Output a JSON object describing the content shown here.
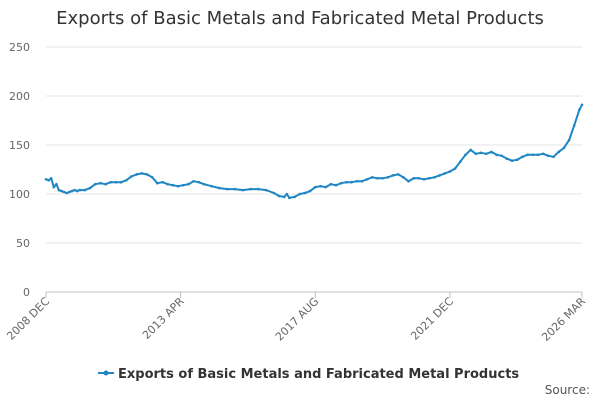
{
  "chart_data": {
    "type": "line",
    "title": "Exports of Basic Metals and Fabricated Metal Products",
    "xlabel": "",
    "ylabel": "",
    "ylim": [
      0,
      250
    ],
    "yticks": [
      "0",
      "50",
      "100",
      "150",
      "200",
      "250"
    ],
    "xticks": [
      "2008 DEC",
      "2013 APR",
      "2017 AUG",
      "2021 DEC",
      "2026 MAR"
    ],
    "grid": true,
    "legend_position": "bottom",
    "series": [
      {
        "name": "Exports of Basic Metals and Fabricated Metal Products",
        "color": "#1f86c4",
        "points": [
          [
            "2008-12",
            115
          ],
          [
            "2009-01",
            114
          ],
          [
            "2009-02",
            116
          ],
          [
            "2009-03",
            107
          ],
          [
            "2009-04",
            110
          ],
          [
            "2009-05",
            104
          ],
          [
            "2009-06",
            103
          ],
          [
            "2009-07",
            102
          ],
          [
            "2009-08",
            101
          ],
          [
            "2009-09",
            102
          ],
          [
            "2009-10",
            103
          ],
          [
            "2009-11",
            104
          ],
          [
            "2009-12",
            103
          ],
          [
            "2010-01",
            104
          ],
          [
            "2010-03",
            104
          ],
          [
            "2010-05",
            106
          ],
          [
            "2010-07",
            110
          ],
          [
            "2010-09",
            111
          ],
          [
            "2010-11",
            110
          ],
          [
            "2011-01",
            112
          ],
          [
            "2011-03",
            112
          ],
          [
            "2011-05",
            112
          ],
          [
            "2011-07",
            114
          ],
          [
            "2011-09",
            118
          ],
          [
            "2011-11",
            120
          ],
          [
            "2012-01",
            121
          ],
          [
            "2012-03",
            120
          ],
          [
            "2012-05",
            117
          ],
          [
            "2012-07",
            111
          ],
          [
            "2012-09",
            112
          ],
          [
            "2012-11",
            110
          ],
          [
            "2013-01",
            109
          ],
          [
            "2013-03",
            108
          ],
          [
            "2013-05",
            109
          ],
          [
            "2013-07",
            110
          ],
          [
            "2013-09",
            113
          ],
          [
            "2013-11",
            112
          ],
          [
            "2014-01",
            110
          ],
          [
            "2014-04",
            108
          ],
          [
            "2014-07",
            106
          ],
          [
            "2014-10",
            105
          ],
          [
            "2015-01",
            105
          ],
          [
            "2015-04",
            104
          ],
          [
            "2015-07",
            105
          ],
          [
            "2015-10",
            105
          ],
          [
            "2016-01",
            104
          ],
          [
            "2016-04",
            101
          ],
          [
            "2016-06",
            98
          ],
          [
            "2016-08",
            97
          ],
          [
            "2016-09",
            100
          ],
          [
            "2016-10",
            96
          ],
          [
            "2016-12",
            97
          ],
          [
            "2017-02",
            100
          ],
          [
            "2017-04",
            101
          ],
          [
            "2017-06",
            103
          ],
          [
            "2017-08",
            107
          ],
          [
            "2017-10",
            108
          ],
          [
            "2017-12",
            107
          ],
          [
            "2018-02",
            110
          ],
          [
            "2018-04",
            109
          ],
          [
            "2018-06",
            111
          ],
          [
            "2018-08",
            112
          ],
          [
            "2018-10",
            112
          ],
          [
            "2018-12",
            113
          ],
          [
            "2019-02",
            113
          ],
          [
            "2019-04",
            115
          ],
          [
            "2019-06",
            117
          ],
          [
            "2019-08",
            116
          ],
          [
            "2019-10",
            116
          ],
          [
            "2019-12",
            117
          ],
          [
            "2020-02",
            119
          ],
          [
            "2020-04",
            120
          ],
          [
            "2020-06",
            117
          ],
          [
            "2020-08",
            113
          ],
          [
            "2020-10",
            116
          ],
          [
            "2020-12",
            116
          ],
          [
            "2021-02",
            115
          ],
          [
            "2021-04",
            116
          ],
          [
            "2021-06",
            117
          ],
          [
            "2021-08",
            119
          ],
          [
            "2021-10",
            121
          ],
          [
            "2021-12",
            123
          ],
          [
            "2022-02",
            126
          ],
          [
            "2022-04",
            133
          ],
          [
            "2022-06",
            140
          ],
          [
            "2022-08",
            145
          ],
          [
            "2022-10",
            141
          ],
          [
            "2022-12",
            142
          ],
          [
            "2023-02",
            141
          ],
          [
            "2023-04",
            143
          ],
          [
            "2023-06",
            140
          ],
          [
            "2023-08",
            139
          ],
          [
            "2023-10",
            136
          ],
          [
            "2023-12",
            134
          ],
          [
            "2024-02",
            135
          ],
          [
            "2024-04",
            138
          ],
          [
            "2024-06",
            140
          ],
          [
            "2024-08",
            140
          ],
          [
            "2024-10",
            140
          ],
          [
            "2024-12",
            141
          ],
          [
            "2025-02",
            139
          ],
          [
            "2025-04",
            138
          ],
          [
            "2025-06",
            143
          ],
          [
            "2025-08",
            147
          ],
          [
            "2025-10",
            155
          ],
          [
            "2025-12",
            170
          ],
          [
            "2026-02",
            186
          ],
          [
            "2026-03",
            191
          ]
        ]
      }
    ],
    "source_label": "Source:"
  }
}
